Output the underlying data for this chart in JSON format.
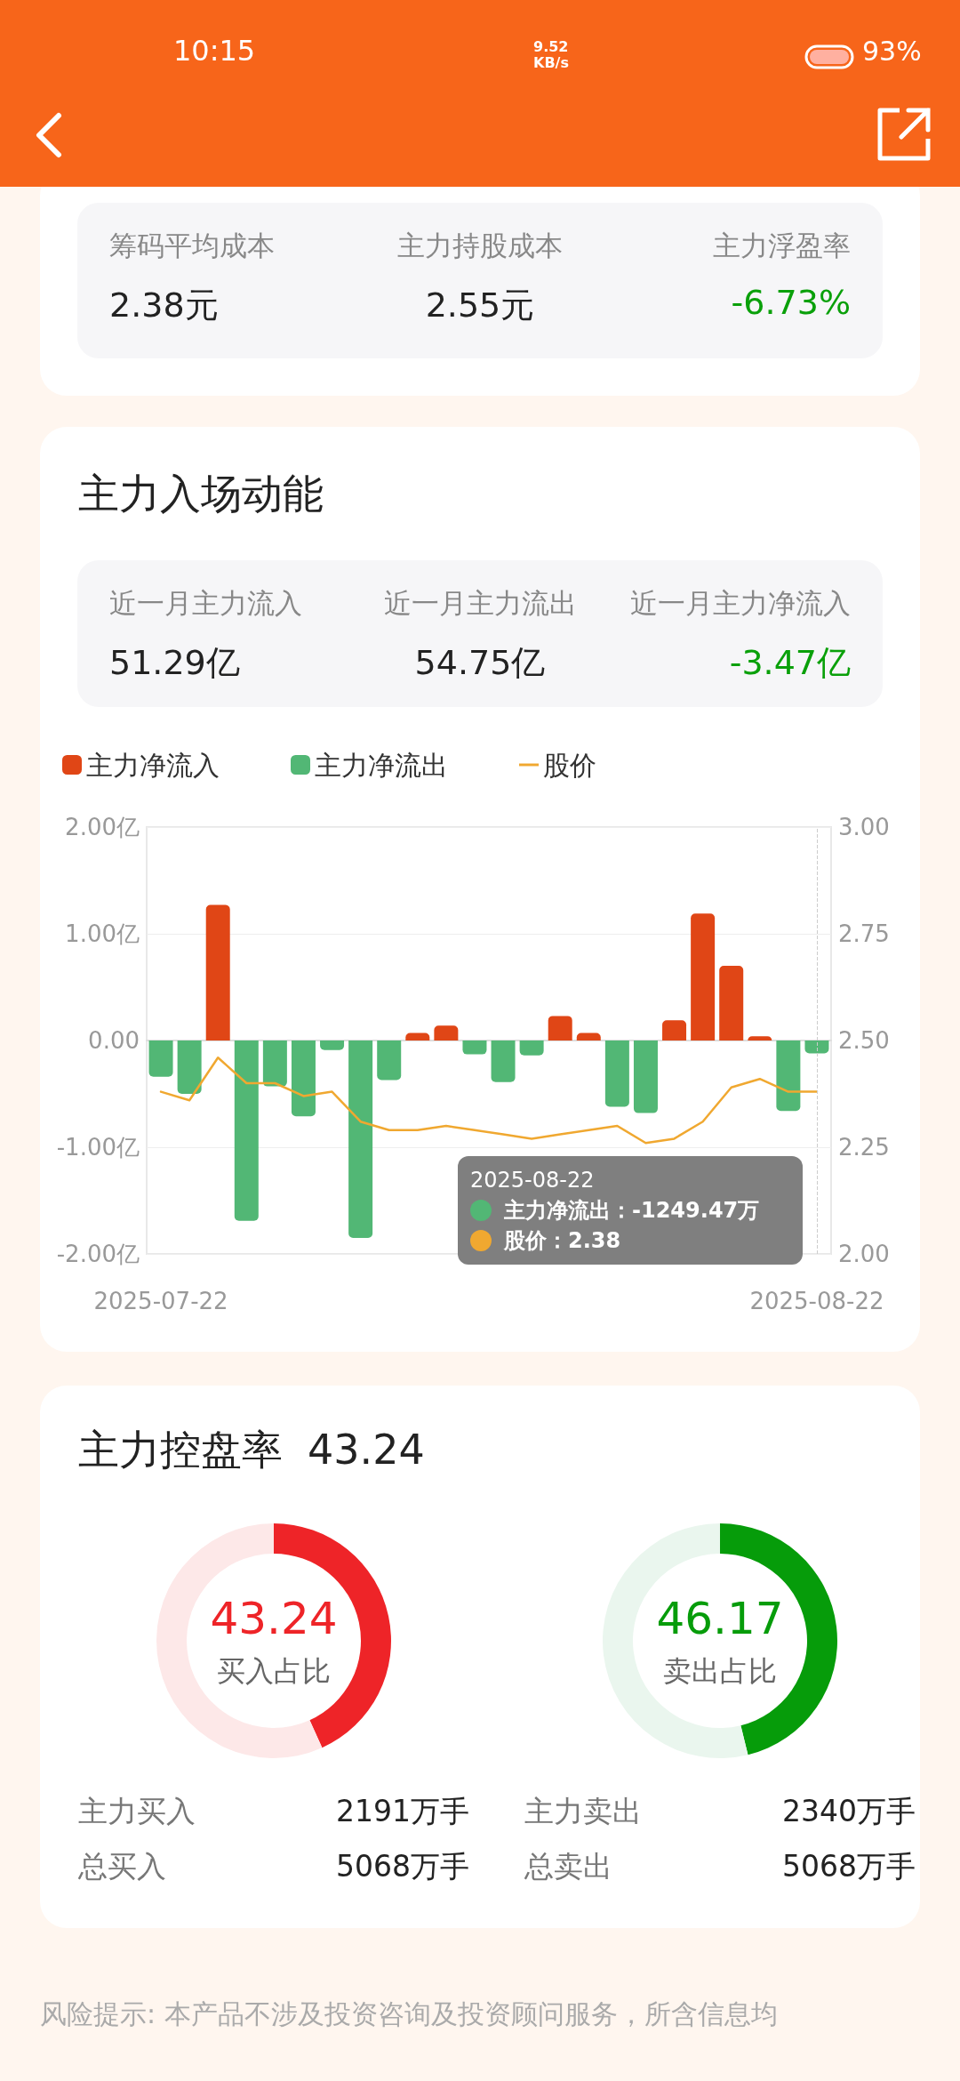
{
  "chart_data": [
    {
      "type": "other",
      "annotations": [
        "10:15",
        "9.52 KB/s",
        "93%"
      ]
    },
    {
      "type": "other",
      "annotations": [
        "筹码平均成本",
        "主力持股成本",
        "主力浮盈率",
        "2.38元",
        "2.55元",
        "-6.73%"
      ],
      "colors": [
        "#888888",
        "#888888",
        "#888888",
        "#222222",
        "#222222",
        "#0aa00a"
      ]
    },
    {
      "type": "other",
      "title": "主力入场动能",
      "annotations": [
        "近一月主力流入",
        "近一月主力流出",
        "近一月主力净流入",
        "51.29亿",
        "54.75亿",
        "-3.47亿"
      ],
      "colors": [
        "#888888",
        "#888888",
        "#888888",
        "#222222",
        "#222222",
        "#0aa00a"
      ]
    },
    {
      "type": "bar",
      "stacked": true,
      "legend": "top left",
      "grid": "y",
      "marker": "none",
      "line_style": "solid",
      "categories": [
        "2025-07-22",
        null,
        null,
        null,
        null,
        null,
        null,
        null,
        null,
        null,
        null,
        null,
        null,
        null,
        null,
        null,
        null,
        null,
        null,
        null,
        null,
        null,
        null,
        "2025-08-22"
      ],
      "series": [
        {
          "name": "主力净流入",
          "color": "#e04616",
          "values": [
            null,
            null,
            1.27,
            null,
            null,
            null,
            null,
            null,
            null,
            0.07,
            0.14,
            null,
            null,
            null,
            0.23,
            0.07,
            null,
            null,
            0.19,
            1.19,
            0.7,
            0.04,
            null,
            null
          ]
        },
        {
          "name": "主力净流出",
          "color": "#52b775",
          "values": [
            -0.34,
            -0.5,
            null,
            -1.69,
            -0.43,
            -0.71,
            -0.09,
            -1.85,
            -0.37,
            null,
            null,
            -0.13,
            -0.39,
            -0.14,
            null,
            null,
            -0.62,
            -0.68,
            null,
            null,
            null,
            null,
            -0.66,
            -0.12
          ]
        },
        {
          "name": "股价",
          "type": "line",
          "axis": "y2",
          "color": "#f0a830",
          "values": [
            2.38,
            2.36,
            2.46,
            2.4,
            2.4,
            2.37,
            2.38,
            2.31,
            2.29,
            2.29,
            2.3,
            2.29,
            2.28,
            2.27,
            2.28,
            2.29,
            2.3,
            2.26,
            2.27,
            2.31,
            2.39,
            2.41,
            2.38,
            2.38
          ]
        }
      ],
      "ylim": [
        -2,
        2
      ],
      "yticks": [
        {
          "value": -2,
          "label": "-2.00亿"
        },
        {
          "value": -1,
          "label": "-1.00亿"
        },
        {
          "value": 0,
          "label": "0.00"
        },
        {
          "value": 1,
          "label": "1.00亿"
        },
        {
          "value": 2,
          "label": "2.00亿"
        }
      ],
      "y2lim": [
        2,
        3
      ],
      "y2ticks": [
        {
          "value": 2,
          "label": "2.00"
        },
        {
          "value": 2.25,
          "label": "2.25"
        },
        {
          "value": 2.5,
          "label": "2.50"
        },
        {
          "value": 2.75,
          "label": "2.75"
        },
        {
          "value": 3,
          "label": "3.00"
        }
      ],
      "ref_lines": [
        {
          "axis": "x",
          "value": "2025-08-22",
          "color": "#cccccc",
          "line_style": "dashed"
        }
      ],
      "annotations": [
        "2025-08-22",
        "主力净流出：-1249.47万",
        "股价：2.38"
      ]
    },
    {
      "type": "donut",
      "title": "主力控盘率",
      "subtitle": "43.24",
      "categories": [
        "买入占比",
        null
      ],
      "values": [
        43.24,
        56.76
      ],
      "colors": [
        "#ee2428",
        "#fde8e8"
      ],
      "value_labels": [
        "43.24",
        null
      ],
      "annotations": [
        "主力买入",
        "2191万手",
        "总买入",
        "5068万手"
      ]
    },
    {
      "type": "donut",
      "categories": [
        "卖出占比",
        null
      ],
      "values": [
        46.17,
        53.83
      ],
      "colors": [
        "#069c0a",
        "#eaf6ee"
      ],
      "value_labels": [
        "46.17",
        null
      ],
      "annotations": [
        "主力卖出",
        "2340万手",
        "总卖出",
        "5068万手"
      ]
    },
    {
      "type": "other",
      "annotations": [
        "风险提示: 本产品不涉及投资咨询及投资顾问服务，所含信息均"
      ]
    }
  ]
}
